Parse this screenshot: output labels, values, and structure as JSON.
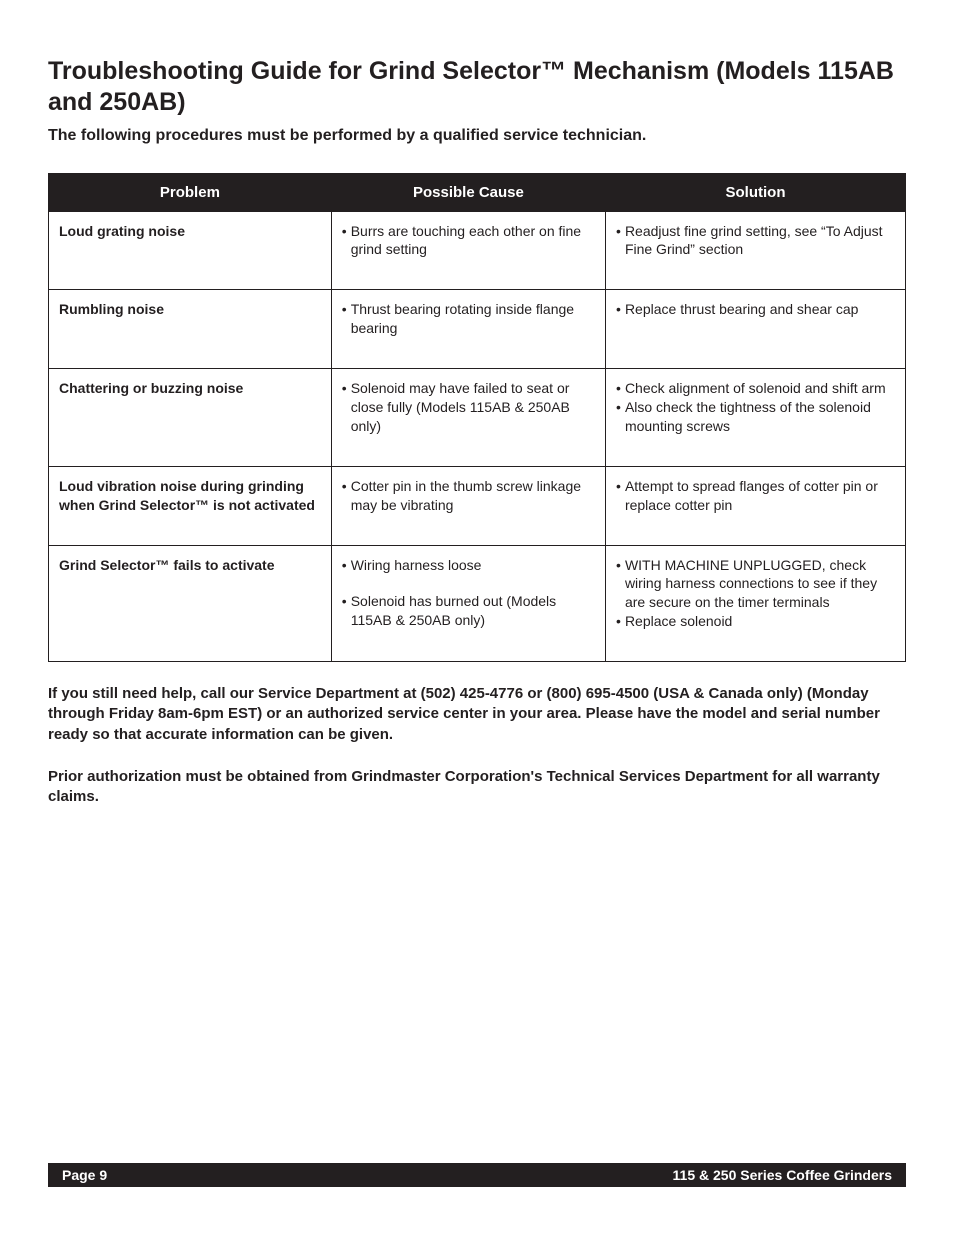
{
  "title": "Troubleshooting Guide for Grind Selector™ Mechanism (Models 115AB and 250AB)",
  "subtitle": "The following procedures must be performed by a qualified service technician.",
  "table": {
    "columns": [
      "Problem",
      "Possible Cause",
      "Solution"
    ],
    "col_widths_pct": [
      33,
      32,
      35
    ],
    "header_bg": "#231f20",
    "header_fg": "#ffffff",
    "border_color": "#231f20",
    "rows": [
      {
        "problem": "Loud grating noise",
        "causes": [
          "Burrs are touching each other on fine grind setting"
        ],
        "solutions": [
          "Readjust fine grind setting, see “To Adjust Fine Grind” section"
        ]
      },
      {
        "problem": "Rumbling noise",
        "causes": [
          "Thrust bearing rotating inside flange bearing"
        ],
        "solutions": [
          "Replace thrust bearing and shear cap"
        ]
      },
      {
        "problem": "Chattering or buzzing noise",
        "causes": [
          "Solenoid may have failed to seat or close fully (Models 115AB & 250AB only)"
        ],
        "solutions": [
          "Check alignment of solenoid and shift arm",
          "Also check the tightness of the solenoid mounting screws"
        ]
      },
      {
        "problem": "Loud vibration noise during grinding when Grind Selector™ is not activated",
        "causes": [
          "Cotter pin in the thumb screw linkage may be vibrating"
        ],
        "solutions": [
          "Attempt to spread flanges of cotter pin or replace cotter pin"
        ]
      },
      {
        "problem": "Grind Selector™ fails to activate",
        "causes": [
          "Wiring harness loose",
          "Solenoid has burned out (Models 115AB & 250AB only)"
        ],
        "cause_spacing_after": [
          true,
          false
        ],
        "solutions": [
          "WITH MACHINE UNPLUGGED, check wiring harness connections to see if they are secure on the timer terminals",
          "Replace solenoid"
        ]
      }
    ]
  },
  "notes": [
    "If you still need help, call our Service Department at (502) 425-4776 or (800) 695-4500 (USA & Canada only) (Monday through Friday 8am-6pm EST) or an authorized service center in your area.  Please have the model and serial number ready so that accurate information can be given.",
    "Prior authorization must be obtained from Grindmaster Corporation's Technical Services Department for all warranty claims."
  ],
  "footer": {
    "left": "Page 9",
    "right": "115 & 250 Series Coffee Grinders",
    "bg": "#231f20",
    "fg": "#ffffff"
  },
  "bullet_char": "•"
}
